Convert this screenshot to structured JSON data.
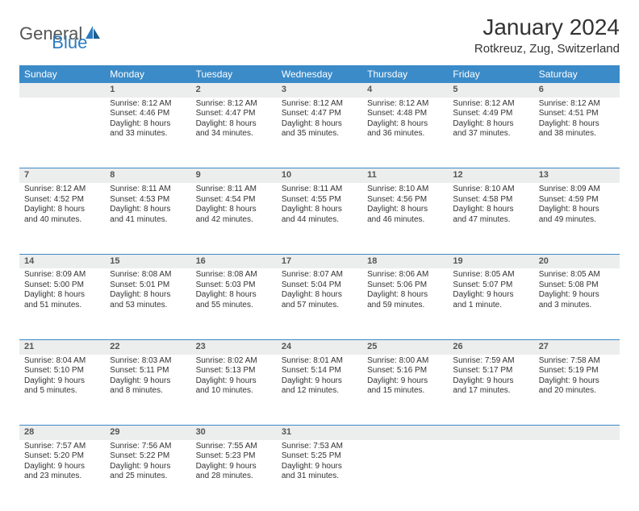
{
  "logo": {
    "text1": "General",
    "text2": "Blue"
  },
  "title": "January 2024",
  "location": "Rotkreuz, Zug, Switzerland",
  "colors": {
    "header_bg": "#3b8bc9",
    "header_text": "#ffffff",
    "daynum_bg": "#eceded",
    "row_divider": "#3b8bc9",
    "body_text": "#333333",
    "logo_gray": "#555555",
    "logo_blue": "#2d7bbf",
    "page_bg": "#ffffff"
  },
  "fonts": {
    "title_size": 28,
    "location_size": 15,
    "header_size": 12,
    "cell_size": 10,
    "daynum_size": 11
  },
  "weekdays": [
    "Sunday",
    "Monday",
    "Tuesday",
    "Wednesday",
    "Thursday",
    "Friday",
    "Saturday"
  ],
  "weeks": [
    [
      null,
      {
        "n": "1",
        "sr": "Sunrise: 8:12 AM",
        "ss": "Sunset: 4:46 PM",
        "d1": "Daylight: 8 hours",
        "d2": "and 33 minutes."
      },
      {
        "n": "2",
        "sr": "Sunrise: 8:12 AM",
        "ss": "Sunset: 4:47 PM",
        "d1": "Daylight: 8 hours",
        "d2": "and 34 minutes."
      },
      {
        "n": "3",
        "sr": "Sunrise: 8:12 AM",
        "ss": "Sunset: 4:47 PM",
        "d1": "Daylight: 8 hours",
        "d2": "and 35 minutes."
      },
      {
        "n": "4",
        "sr": "Sunrise: 8:12 AM",
        "ss": "Sunset: 4:48 PM",
        "d1": "Daylight: 8 hours",
        "d2": "and 36 minutes."
      },
      {
        "n": "5",
        "sr": "Sunrise: 8:12 AM",
        "ss": "Sunset: 4:49 PM",
        "d1": "Daylight: 8 hours",
        "d2": "and 37 minutes."
      },
      {
        "n": "6",
        "sr": "Sunrise: 8:12 AM",
        "ss": "Sunset: 4:51 PM",
        "d1": "Daylight: 8 hours",
        "d2": "and 38 minutes."
      }
    ],
    [
      {
        "n": "7",
        "sr": "Sunrise: 8:12 AM",
        "ss": "Sunset: 4:52 PM",
        "d1": "Daylight: 8 hours",
        "d2": "and 40 minutes."
      },
      {
        "n": "8",
        "sr": "Sunrise: 8:11 AM",
        "ss": "Sunset: 4:53 PM",
        "d1": "Daylight: 8 hours",
        "d2": "and 41 minutes."
      },
      {
        "n": "9",
        "sr": "Sunrise: 8:11 AM",
        "ss": "Sunset: 4:54 PM",
        "d1": "Daylight: 8 hours",
        "d2": "and 42 minutes."
      },
      {
        "n": "10",
        "sr": "Sunrise: 8:11 AM",
        "ss": "Sunset: 4:55 PM",
        "d1": "Daylight: 8 hours",
        "d2": "and 44 minutes."
      },
      {
        "n": "11",
        "sr": "Sunrise: 8:10 AM",
        "ss": "Sunset: 4:56 PM",
        "d1": "Daylight: 8 hours",
        "d2": "and 46 minutes."
      },
      {
        "n": "12",
        "sr": "Sunrise: 8:10 AM",
        "ss": "Sunset: 4:58 PM",
        "d1": "Daylight: 8 hours",
        "d2": "and 47 minutes."
      },
      {
        "n": "13",
        "sr": "Sunrise: 8:09 AM",
        "ss": "Sunset: 4:59 PM",
        "d1": "Daylight: 8 hours",
        "d2": "and 49 minutes."
      }
    ],
    [
      {
        "n": "14",
        "sr": "Sunrise: 8:09 AM",
        "ss": "Sunset: 5:00 PM",
        "d1": "Daylight: 8 hours",
        "d2": "and 51 minutes."
      },
      {
        "n": "15",
        "sr": "Sunrise: 8:08 AM",
        "ss": "Sunset: 5:01 PM",
        "d1": "Daylight: 8 hours",
        "d2": "and 53 minutes."
      },
      {
        "n": "16",
        "sr": "Sunrise: 8:08 AM",
        "ss": "Sunset: 5:03 PM",
        "d1": "Daylight: 8 hours",
        "d2": "and 55 minutes."
      },
      {
        "n": "17",
        "sr": "Sunrise: 8:07 AM",
        "ss": "Sunset: 5:04 PM",
        "d1": "Daylight: 8 hours",
        "d2": "and 57 minutes."
      },
      {
        "n": "18",
        "sr": "Sunrise: 8:06 AM",
        "ss": "Sunset: 5:06 PM",
        "d1": "Daylight: 8 hours",
        "d2": "and 59 minutes."
      },
      {
        "n": "19",
        "sr": "Sunrise: 8:05 AM",
        "ss": "Sunset: 5:07 PM",
        "d1": "Daylight: 9 hours",
        "d2": "and 1 minute."
      },
      {
        "n": "20",
        "sr": "Sunrise: 8:05 AM",
        "ss": "Sunset: 5:08 PM",
        "d1": "Daylight: 9 hours",
        "d2": "and 3 minutes."
      }
    ],
    [
      {
        "n": "21",
        "sr": "Sunrise: 8:04 AM",
        "ss": "Sunset: 5:10 PM",
        "d1": "Daylight: 9 hours",
        "d2": "and 5 minutes."
      },
      {
        "n": "22",
        "sr": "Sunrise: 8:03 AM",
        "ss": "Sunset: 5:11 PM",
        "d1": "Daylight: 9 hours",
        "d2": "and 8 minutes."
      },
      {
        "n": "23",
        "sr": "Sunrise: 8:02 AM",
        "ss": "Sunset: 5:13 PM",
        "d1": "Daylight: 9 hours",
        "d2": "and 10 minutes."
      },
      {
        "n": "24",
        "sr": "Sunrise: 8:01 AM",
        "ss": "Sunset: 5:14 PM",
        "d1": "Daylight: 9 hours",
        "d2": "and 12 minutes."
      },
      {
        "n": "25",
        "sr": "Sunrise: 8:00 AM",
        "ss": "Sunset: 5:16 PM",
        "d1": "Daylight: 9 hours",
        "d2": "and 15 minutes."
      },
      {
        "n": "26",
        "sr": "Sunrise: 7:59 AM",
        "ss": "Sunset: 5:17 PM",
        "d1": "Daylight: 9 hours",
        "d2": "and 17 minutes."
      },
      {
        "n": "27",
        "sr": "Sunrise: 7:58 AM",
        "ss": "Sunset: 5:19 PM",
        "d1": "Daylight: 9 hours",
        "d2": "and 20 minutes."
      }
    ],
    [
      {
        "n": "28",
        "sr": "Sunrise: 7:57 AM",
        "ss": "Sunset: 5:20 PM",
        "d1": "Daylight: 9 hours",
        "d2": "and 23 minutes."
      },
      {
        "n": "29",
        "sr": "Sunrise: 7:56 AM",
        "ss": "Sunset: 5:22 PM",
        "d1": "Daylight: 9 hours",
        "d2": "and 25 minutes."
      },
      {
        "n": "30",
        "sr": "Sunrise: 7:55 AM",
        "ss": "Sunset: 5:23 PM",
        "d1": "Daylight: 9 hours",
        "d2": "and 28 minutes."
      },
      {
        "n": "31",
        "sr": "Sunrise: 7:53 AM",
        "ss": "Sunset: 5:25 PM",
        "d1": "Daylight: 9 hours",
        "d2": "and 31 minutes."
      },
      null,
      null,
      null
    ]
  ]
}
